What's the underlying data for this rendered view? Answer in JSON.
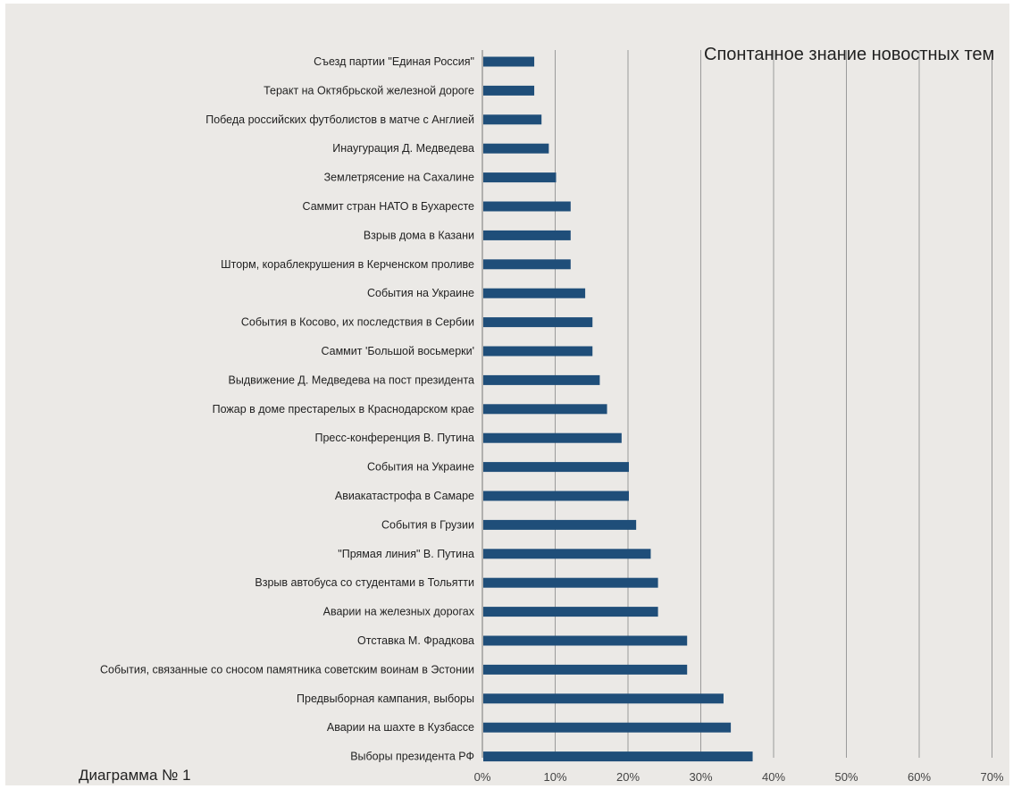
{
  "chart_data": {
    "type": "bar",
    "orientation": "horizontal",
    "title": "Спонтанное знание новостных тем",
    "caption": "Диаграмма № 1",
    "categories": [
      "Съезд партии \"Единая Россия\"",
      "Теракт на Октябрьской железной дороге",
      "Победа российских футболистов в матче с Англией",
      "Инаугурация Д. Медведева",
      "Землетрясение на Сахалине",
      "Саммит стран НАТО в Бухаресте",
      "Взрыв дома в Казани",
      "Шторм, кораблекрушения в Керченском проливе",
      "События на Украине",
      "События в Косово, их последствия в Сербии",
      "Саммит 'Большой восьмерки'",
      "Выдвижение Д. Медведева на пост президента",
      "Пожар в доме престарелых в Краснодарском крае",
      "Пресс-конференция В. Путина",
      "События на Украине",
      "Авиакатастрофа в Самаре",
      "События в Грузии",
      "\"Прямая линия\" В. Путина",
      "Взрыв автобуса со студентами в Тольятти",
      "Аварии на железных дорогах",
      "Отставка М. Фрадкова",
      "События, связанные со сносом памятника советским воинам в Эстонии",
      "Предвыборная кампания, выборы",
      "Аварии на шахте в Кузбассе",
      "Выборы президента РФ"
    ],
    "values": [
      7,
      7,
      8,
      9,
      10,
      12,
      12,
      12,
      14,
      15,
      15,
      16,
      17,
      19,
      20,
      20,
      21,
      23,
      24,
      24,
      28,
      28,
      33,
      34,
      37
    ],
    "xlim": [
      0,
      70
    ],
    "xticks": [
      "0%",
      "10%",
      "20%",
      "30%",
      "40%",
      "50%",
      "60%",
      "70%"
    ],
    "grid": true,
    "colors": {
      "bar": "#1f4e79",
      "grid": "#9a9a9a",
      "background": "#ebe9e6"
    }
  }
}
